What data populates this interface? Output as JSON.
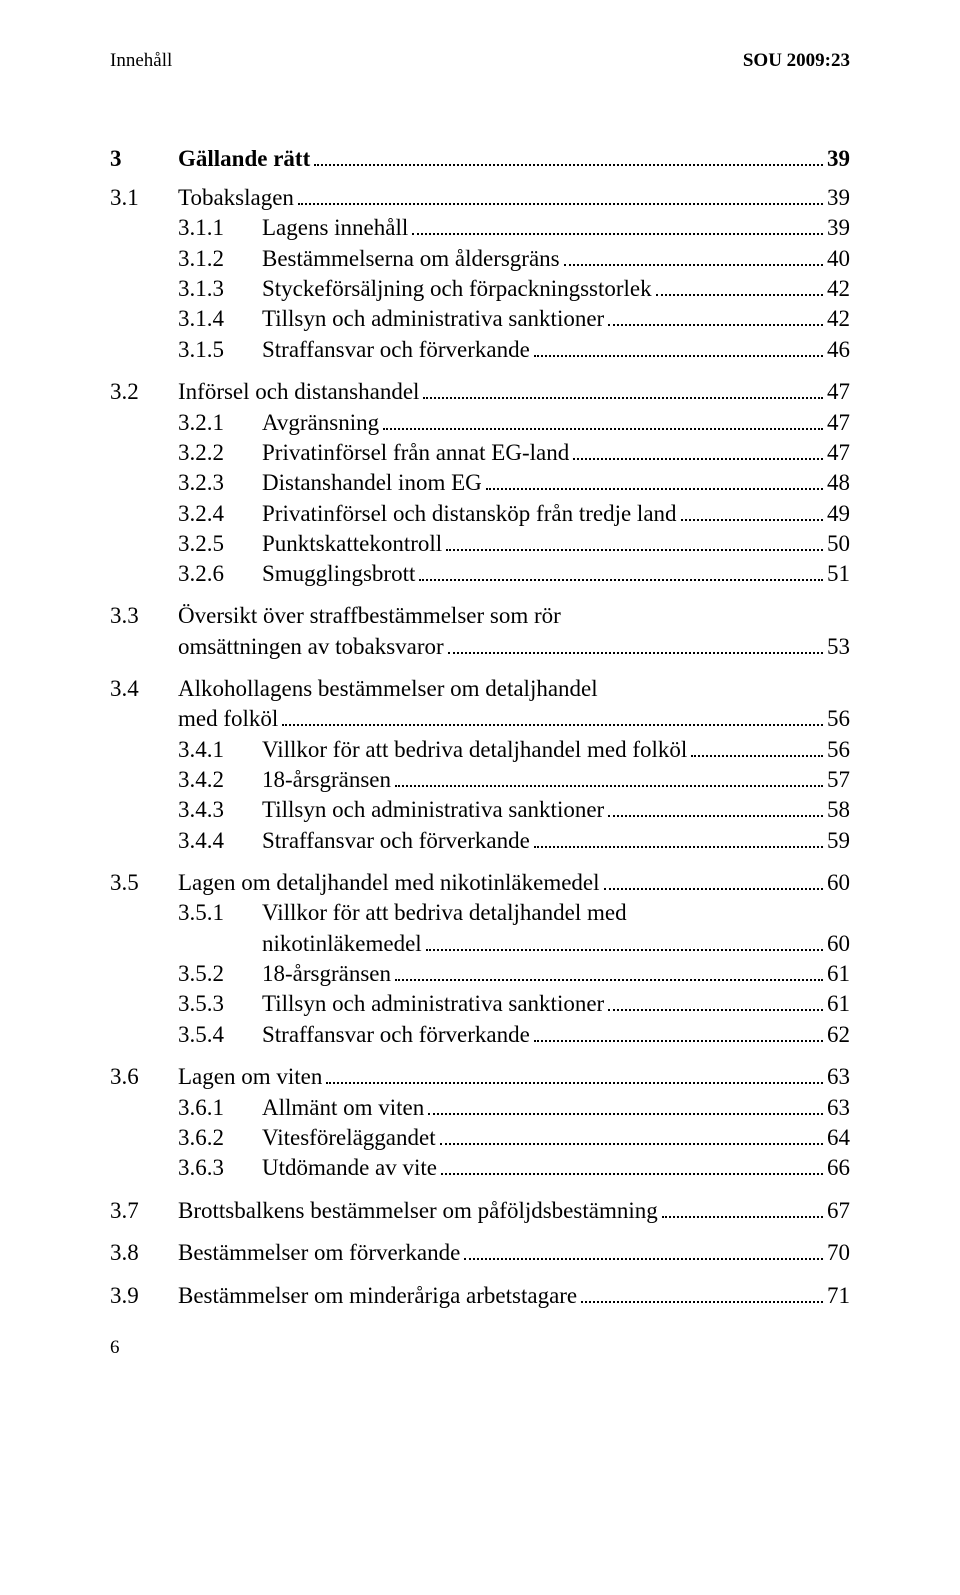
{
  "header": {
    "left": "Innehåll",
    "right": "SOU 2009:23"
  },
  "chapter": {
    "num": "3",
    "title": "Gällande rätt",
    "page": "39"
  },
  "sections": [
    {
      "num": "3.1",
      "title": "Tobakslagen",
      "page": "39",
      "subs": [
        {
          "num": "3.1.1",
          "title": "Lagens innehåll",
          "page": "39"
        },
        {
          "num": "3.1.2",
          "title": "Bestämmelserna om åldersgräns",
          "page": "40"
        },
        {
          "num": "3.1.3",
          "title": "Styckeförsäljning och förpackningsstorlek",
          "page": "42"
        },
        {
          "num": "3.1.4",
          "title": "Tillsyn och administrativa sanktioner",
          "page": "42"
        },
        {
          "num": "3.1.5",
          "title": "Straffansvar och förverkande",
          "page": "46"
        }
      ]
    },
    {
      "num": "3.2",
      "title": "Införsel och distanshandel",
      "page": "47",
      "subs": [
        {
          "num": "3.2.1",
          "title": "Avgränsning",
          "page": "47"
        },
        {
          "num": "3.2.2",
          "title": "Privatinförsel från annat EG-land",
          "page": "47"
        },
        {
          "num": "3.2.3",
          "title": "Distanshandel inom EG",
          "page": "48"
        },
        {
          "num": "3.2.4",
          "title": "Privatinförsel och distansköp från tredje land",
          "page": "49"
        },
        {
          "num": "3.2.5",
          "title": "Punktskattekontroll",
          "page": "50"
        },
        {
          "num": "3.2.6",
          "title": "Smugglingsbrott",
          "page": "51"
        }
      ]
    },
    {
      "num": "3.3",
      "title_lines": [
        "Översikt över straffbestämmelser som rör",
        "omsättningen av tobaksvaror"
      ],
      "page": "53",
      "subs": []
    },
    {
      "num": "3.4",
      "title_lines": [
        "Alkohollagens bestämmelser om detaljhandel",
        "med folköl"
      ],
      "page": "56",
      "subs": [
        {
          "num": "3.4.1",
          "title": "Villkor för att bedriva detaljhandel med folköl",
          "page": "56"
        },
        {
          "num": "3.4.2",
          "title": "18-årsgränsen",
          "page": "57"
        },
        {
          "num": "3.4.3",
          "title": "Tillsyn och administrativa sanktioner",
          "page": "58"
        },
        {
          "num": "3.4.4",
          "title": "Straffansvar och förverkande",
          "page": "59"
        }
      ]
    },
    {
      "num": "3.5",
      "title": "Lagen om detaljhandel med nikotinläkemedel",
      "page": "60",
      "subs": [
        {
          "num": "3.5.1",
          "title_lines": [
            "Villkor för att bedriva detaljhandel med",
            "nikotinläkemedel"
          ],
          "page": "60"
        },
        {
          "num": "3.5.2",
          "title": "18-årsgränsen",
          "page": "61"
        },
        {
          "num": "3.5.3",
          "title": "Tillsyn och administrativa sanktioner",
          "page": "61"
        },
        {
          "num": "3.5.4",
          "title": "Straffansvar och förverkande",
          "page": "62"
        }
      ]
    },
    {
      "num": "3.6",
      "title": "Lagen om viten",
      "page": "63",
      "subs": [
        {
          "num": "3.6.1",
          "title": "Allmänt om viten",
          "page": "63"
        },
        {
          "num": "3.6.2",
          "title": "Vitesföreläggandet",
          "page": "64"
        },
        {
          "num": "3.6.3",
          "title": "Utdömande av vite",
          "page": "66"
        }
      ]
    },
    {
      "num": "3.7",
      "title": "Brottsbalkens bestämmelser om påföljdsbestämning",
      "page": "67",
      "subs": []
    },
    {
      "num": "3.8",
      "title": "Bestämmelser om förverkande",
      "page": "70",
      "subs": []
    },
    {
      "num": "3.9",
      "title": "Bestämmelser om minderåriga arbetstagare",
      "page": "71",
      "subs": []
    }
  ],
  "footer_page": "6"
}
